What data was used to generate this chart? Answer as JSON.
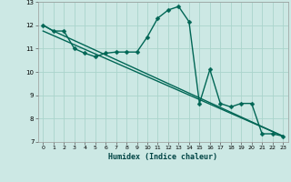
{
  "xlabel": "Humidex (Indice chaleur)",
  "background_color": "#cce8e4",
  "grid_color": "#aad4cc",
  "line_color": "#006655",
  "xlim": [
    -0.5,
    23.5
  ],
  "ylim": [
    7,
    13
  ],
  "xticks": [
    0,
    1,
    2,
    3,
    4,
    5,
    6,
    7,
    8,
    9,
    10,
    11,
    12,
    13,
    14,
    15,
    16,
    17,
    18,
    19,
    20,
    21,
    22,
    23
  ],
  "yticks": [
    7,
    8,
    9,
    10,
    11,
    12,
    13
  ],
  "series1_x": [
    0,
    1,
    2,
    3,
    4,
    5,
    6,
    7,
    8,
    9,
    10,
    11,
    12,
    13,
    14,
    15,
    16,
    17,
    18,
    19,
    20,
    21,
    22,
    23
  ],
  "series1_y": [
    12.0,
    11.75,
    11.75,
    11.0,
    10.8,
    10.65,
    10.8,
    10.85,
    10.85,
    10.85,
    11.5,
    12.3,
    12.65,
    12.8,
    12.15,
    8.65,
    10.1,
    8.65,
    8.5,
    8.65,
    8.65,
    7.35,
    7.35,
    7.25
  ],
  "series2_x": [
    0,
    1,
    23
  ],
  "series2_y": [
    12.0,
    11.75,
    7.25
  ],
  "series3_x": [
    0,
    23
  ],
  "series3_y": [
    11.75,
    7.25
  ],
  "marker_size": 2.5,
  "line_width": 1.0
}
